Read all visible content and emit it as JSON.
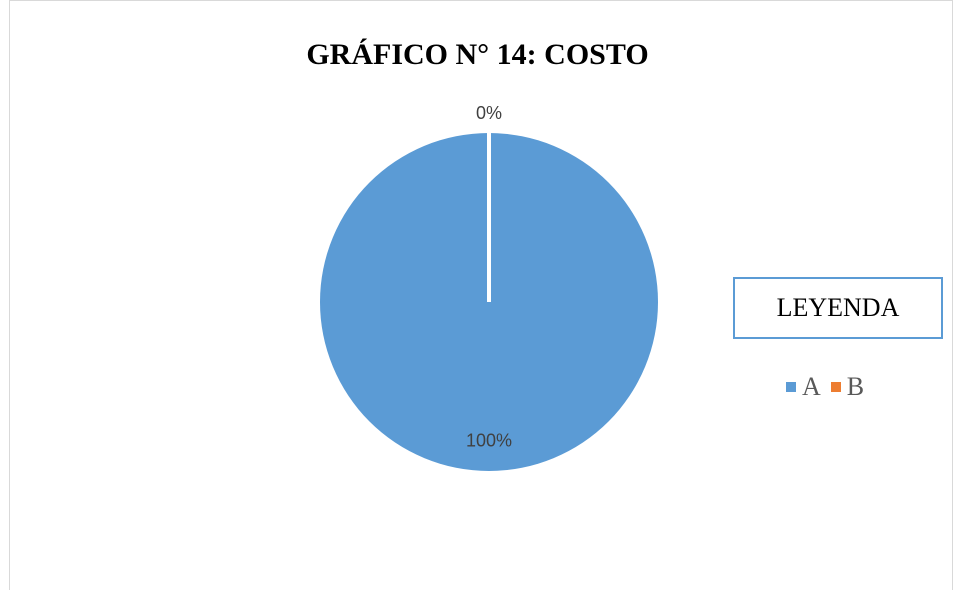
{
  "chart_data": {
    "type": "pie",
    "title": "GRÁFICO N° 14: COSTO",
    "legend_title": "LEYENDA",
    "legend_position": "right",
    "categories": [
      "A",
      "B"
    ],
    "values": [
      100,
      0
    ],
    "data_labels": [
      "100%",
      "0%"
    ],
    "colors": [
      "#5b9bd5",
      "#ed7d31"
    ]
  }
}
